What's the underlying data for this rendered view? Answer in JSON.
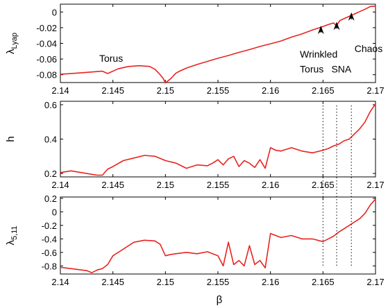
{
  "chart_data": [
    {
      "type": "line",
      "id": "top",
      "xlim": [
        2.14,
        2.17
      ],
      "ylim": [
        -0.09,
        0.01
      ],
      "ylabel_main": "λ",
      "ylabel_sub": "Lyap",
      "xticks": [
        "2.14",
        "2.145",
        "2.15",
        "2.155",
        "2.16",
        "2.165",
        "2.17"
      ],
      "yticks": [
        0,
        -0.02,
        -0.04,
        -0.06,
        -0.08
      ],
      "ytick_labels": [
        "0",
        "-0.02",
        "-0.04",
        "-0.06",
        "-0.08"
      ],
      "color": "#e8231f",
      "x": [
        2.14,
        2.142,
        2.144,
        2.1445,
        2.1455,
        2.1465,
        2.1475,
        2.1485,
        2.149,
        2.1495,
        2.1498,
        2.15,
        2.1505,
        2.151,
        2.1515,
        2.152,
        2.153,
        2.154,
        2.155,
        2.156,
        2.157,
        2.158,
        2.159,
        2.16,
        2.161,
        2.162,
        2.163,
        2.164,
        2.165,
        2.1655,
        2.166,
        2.1663,
        2.1666,
        2.167,
        2.1675,
        2.168,
        2.1685,
        2.169,
        2.1695,
        2.17
      ],
      "y": [
        -0.0795,
        -0.0775,
        -0.0755,
        -0.0785,
        -0.0725,
        -0.0695,
        -0.0685,
        -0.0695,
        -0.073,
        -0.08,
        -0.085,
        -0.0905,
        -0.085,
        -0.078,
        -0.0745,
        -0.0715,
        -0.067,
        -0.063,
        -0.059,
        -0.0555,
        -0.0515,
        -0.048,
        -0.044,
        -0.0405,
        -0.037,
        -0.032,
        -0.028,
        -0.023,
        -0.0185,
        -0.016,
        -0.014,
        -0.0175,
        -0.011,
        -0.0085,
        -0.0055,
        -0.0025,
        0.0005,
        0.0035,
        0.007,
        0.0075
      ],
      "annotations": [
        {
          "text": "Torus",
          "x": 2.1437,
          "y": -0.0635
        },
        {
          "text": "Wrinkled",
          "x": 2.1628,
          "y": -0.058
        },
        {
          "text": "Torus",
          "x": 2.1628,
          "y": -0.077
        },
        {
          "text": "SNA",
          "x": 2.1658,
          "y": -0.077
        },
        {
          "text": "Chaos",
          "x": 2.168,
          "y": -0.051
        }
      ],
      "arrows": [
        {
          "x": 2.1648,
          "tip": -0.0175,
          "tail": -0.0265
        },
        {
          "x": 2.1663,
          "tip": -0.0125,
          "tail": -0.0215
        },
        {
          "x": 2.1677,
          "tip": -0.0005,
          "tail": -0.0095
        }
      ]
    },
    {
      "type": "line",
      "id": "middle",
      "xlim": [
        2.14,
        2.17
      ],
      "ylim": [
        0.18,
        0.62
      ],
      "ylabel_main": "h",
      "ylabel_sub": "",
      "xticks": [
        "2.14",
        "2.145",
        "2.15",
        "2.155",
        "2.16",
        "2.165",
        "2.17"
      ],
      "yticks": [
        0.2,
        0.4,
        0.6
      ],
      "ytick_labels": [
        "0.2",
        "0.4",
        "0.6"
      ],
      "color": "#e8231f",
      "x": [
        2.14,
        2.141,
        2.142,
        2.143,
        2.1435,
        2.144,
        2.1445,
        2.145,
        2.146,
        2.147,
        2.148,
        2.149,
        2.15,
        2.151,
        2.152,
        2.153,
        2.154,
        2.1545,
        2.155,
        2.1555,
        2.156,
        2.1565,
        2.157,
        2.1575,
        2.158,
        2.1585,
        2.159,
        2.1595,
        2.16,
        2.1605,
        2.161,
        2.162,
        2.163,
        2.164,
        2.165,
        2.1655,
        2.166,
        2.1665,
        2.167,
        2.1675,
        2.168,
        2.1685,
        2.169,
        2.1695,
        2.17
      ],
      "y": [
        0.205,
        0.215,
        0.205,
        0.195,
        0.19,
        0.19,
        0.225,
        0.24,
        0.275,
        0.29,
        0.305,
        0.3,
        0.275,
        0.26,
        0.23,
        0.25,
        0.245,
        0.26,
        0.28,
        0.25,
        0.285,
        0.3,
        0.24,
        0.275,
        0.26,
        0.235,
        0.28,
        0.23,
        0.35,
        0.335,
        0.33,
        0.35,
        0.33,
        0.32,
        0.335,
        0.345,
        0.36,
        0.37,
        0.39,
        0.4,
        0.43,
        0.46,
        0.5,
        0.56,
        0.605
      ]
    },
    {
      "type": "line",
      "id": "bottom",
      "xlim": [
        2.14,
        2.17
      ],
      "ylim": [
        -0.92,
        0.22
      ],
      "ylabel_main": "λ",
      "ylabel_sub": "5,11",
      "xticks": [
        "2.14",
        "2.145",
        "2.15",
        "2.155",
        "2.16",
        "2.165",
        "2.17"
      ],
      "yticks": [
        0.2,
        0,
        -0.2,
        -0.4,
        -0.6,
        -0.8
      ],
      "ytick_labels": [
        "0.2",
        "0",
        "-0.2",
        "-0.4",
        "-0.6",
        "-0.8"
      ],
      "color": "#e8231f",
      "x": [
        2.14,
        2.141,
        2.142,
        2.1425,
        2.143,
        2.1435,
        2.144,
        2.1445,
        2.145,
        2.146,
        2.147,
        2.148,
        2.149,
        2.1495,
        2.15,
        2.1505,
        2.151,
        2.152,
        2.153,
        2.154,
        2.155,
        2.1555,
        2.156,
        2.1565,
        2.157,
        2.1575,
        2.158,
        2.1585,
        2.159,
        2.1595,
        2.16,
        2.161,
        2.162,
        2.163,
        2.164,
        2.165,
        2.1655,
        2.166,
        2.1665,
        2.167,
        2.1675,
        2.168,
        2.1685,
        2.169,
        2.1695,
        2.17
      ],
      "y": [
        -0.82,
        -0.84,
        -0.86,
        -0.87,
        -0.9,
        -0.86,
        -0.84,
        -0.78,
        -0.65,
        -0.55,
        -0.45,
        -0.42,
        -0.43,
        -0.48,
        -0.65,
        -0.63,
        -0.62,
        -0.6,
        -0.62,
        -0.59,
        -0.65,
        -0.8,
        -0.45,
        -0.78,
        -0.72,
        -0.8,
        -0.5,
        -0.78,
        -0.72,
        -0.83,
        -0.32,
        -0.38,
        -0.35,
        -0.4,
        -0.4,
        -0.44,
        -0.4,
        -0.36,
        -0.3,
        -0.25,
        -0.2,
        -0.15,
        -0.1,
        -0.02,
        0.1,
        0.19
      ]
    }
  ],
  "xlabel": "β",
  "markers": [
    2.165,
    2.1663,
    2.1677
  ]
}
